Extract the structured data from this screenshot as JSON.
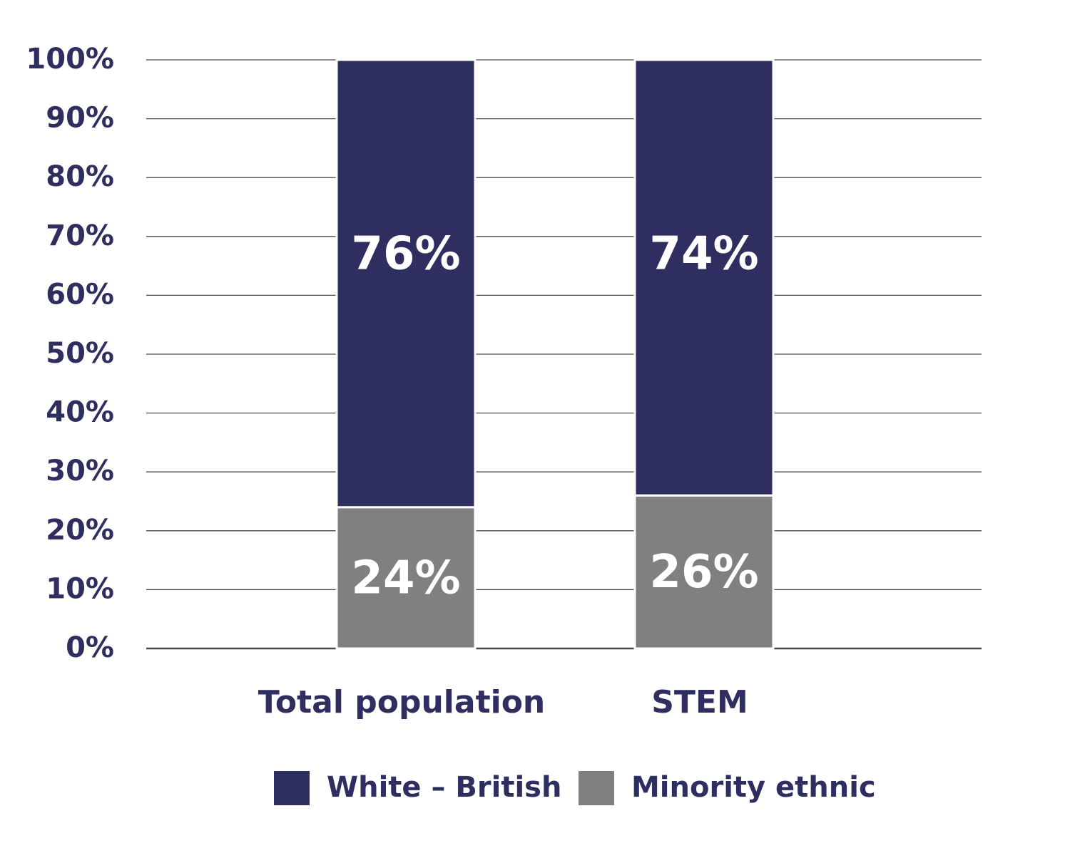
{
  "chart_data": {
    "type": "bar",
    "stacked": true,
    "categories": [
      "Total population",
      "STEM"
    ],
    "series": [
      {
        "name": "White – British",
        "values": [
          76,
          74
        ],
        "color": "#2e2e60",
        "labels": [
          "76%",
          "74%"
        ]
      },
      {
        "name": "Minority ethnic",
        "values": [
          24,
          26
        ],
        "color": "#808080",
        "labels": [
          "24%",
          "26%"
        ]
      }
    ],
    "ylim": [
      0,
      100
    ],
    "yticks": [
      "0%",
      "10%",
      "20%",
      "30%",
      "40%",
      "50%",
      "60%",
      "70%",
      "80%",
      "90%",
      "100%"
    ],
    "grid": true,
    "legend": "bottom-center"
  }
}
